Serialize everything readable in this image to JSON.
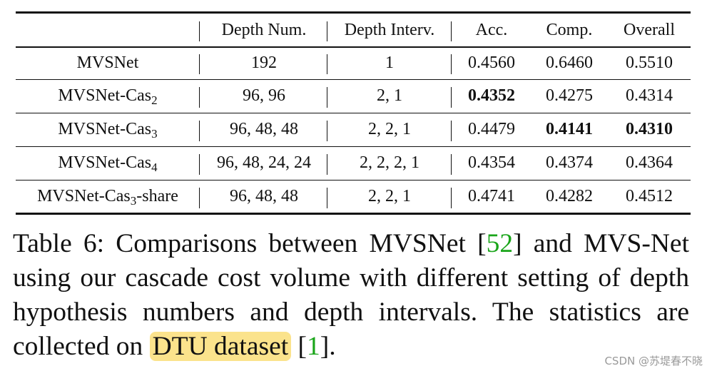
{
  "table": {
    "headers": [
      "",
      "Depth Num.",
      "Depth Interv.",
      "Acc.",
      "Comp.",
      "Overall"
    ],
    "rows": [
      {
        "method": "MVSNet",
        "sub": "",
        "suffix": "",
        "depth_num": "192",
        "depth_interv": "1",
        "acc": "0.4560",
        "comp": "0.6460",
        "overall": "0.5510"
      },
      {
        "method": "MVSNet-Cas",
        "sub": "2",
        "suffix": "",
        "depth_num": "96, 96",
        "depth_interv": "2, 1",
        "acc": "0.4352",
        "comp": "0.4275",
        "overall": "0.4314"
      },
      {
        "method": "MVSNet-Cas",
        "sub": "3",
        "suffix": "",
        "depth_num": "96, 48, 48",
        "depth_interv": "2, 2, 1",
        "acc": "0.4479",
        "comp": "0.4141",
        "overall": "0.4310"
      },
      {
        "method": "MVSNet-Cas",
        "sub": "4",
        "suffix": "",
        "depth_num": "96, 48, 24, 24",
        "depth_interv": "2, 2, 2, 1",
        "acc": "0.4354",
        "comp": "0.4374",
        "overall": "0.4364"
      },
      {
        "method": "MVSNet-Cas",
        "sub": "3",
        "suffix": "-share",
        "depth_num": "96, 48, 48",
        "depth_interv": "2, 2, 1",
        "acc": "0.4741",
        "comp": "0.4282",
        "overall": "0.4512"
      }
    ]
  },
  "caption": {
    "part1": "Table 6:  Comparisons between MVSNet [",
    "cite1": "52",
    "part2": "] and MVS-Net using our cascade cost volume with different setting of depth hypothesis numbers and depth intervals.  The statistics are collected on",
    "highlight": "DTU dataset",
    "part3": " [",
    "cite2": "1",
    "part4": "]."
  },
  "watermark": "CSDN @苏堤春不晓"
}
